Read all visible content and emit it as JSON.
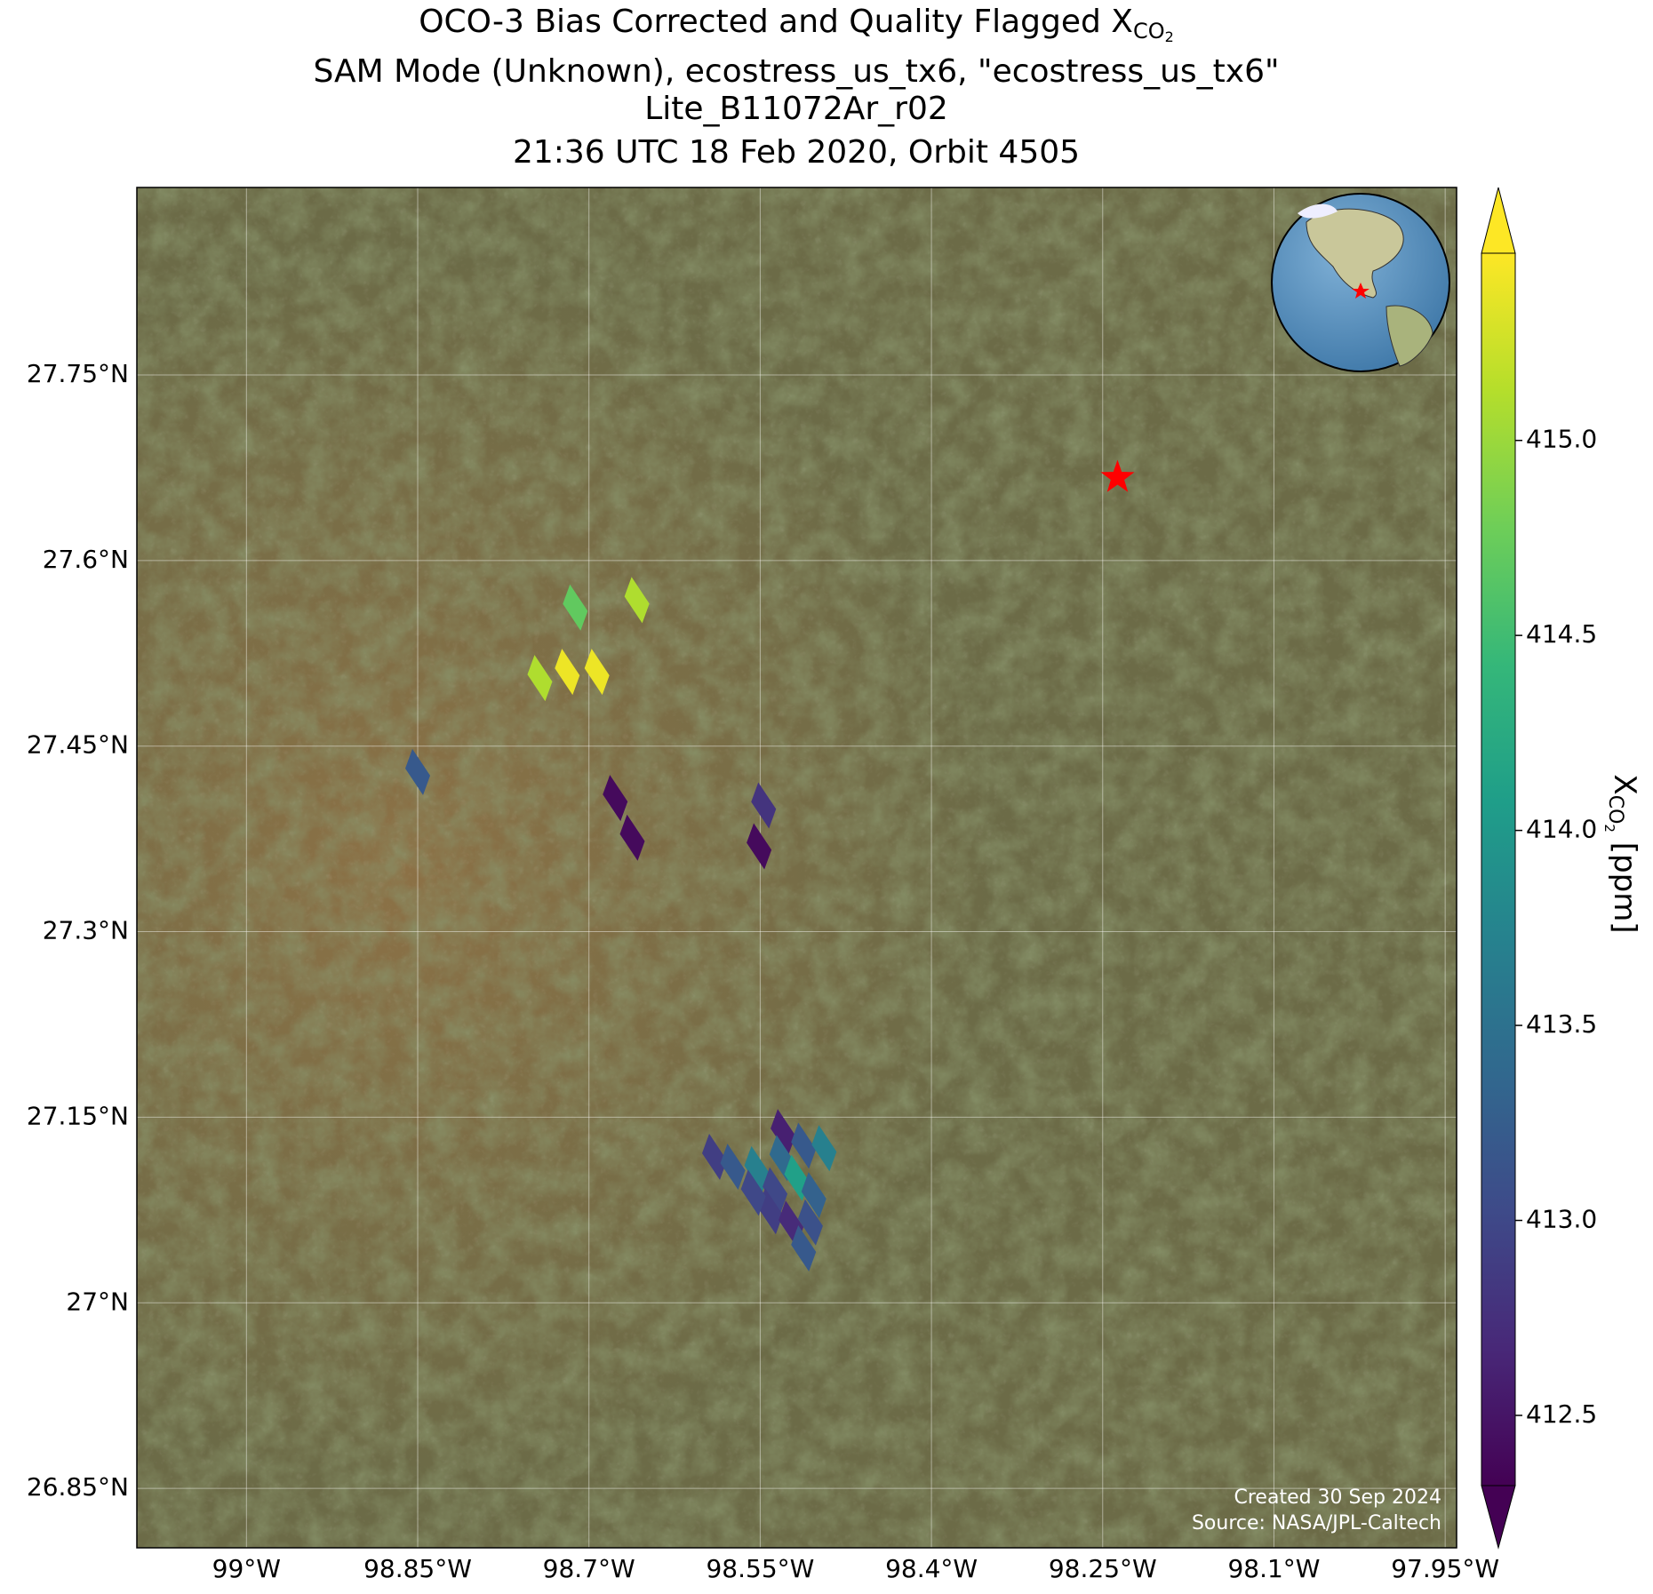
{
  "chart_data": {
    "type": "map",
    "title": {
      "text": "OCO-3 Bias Corrected and Quality Flagged X",
      "sub": "CO",
      "subsub": "2"
    },
    "subtitle_lines": [
      "SAM Mode (Unknown), ecostress_us_tx6, \"ecostress_us_tx6\"",
      "Lite_B11072Ar_r02",
      "21:36 UTC 18 Feb 2020, Orbit 4505"
    ],
    "xlim": [
      -99.096,
      -97.94
    ],
    "ylim": [
      26.802,
      27.9015
    ],
    "xticks": [
      {
        "value": -99,
        "label": "99°W"
      },
      {
        "value": -98.85,
        "label": "98.85°W"
      },
      {
        "value": -98.7,
        "label": "98.7°W"
      },
      {
        "value": -98.55,
        "label": "98.55°W"
      },
      {
        "value": -98.4,
        "label": "98.4°W"
      },
      {
        "value": -98.25,
        "label": "98.25°W"
      },
      {
        "value": -98.1,
        "label": "98.1°W"
      },
      {
        "value": -97.95,
        "label": "97.95°W"
      }
    ],
    "yticks": [
      {
        "value": 26.85,
        "label": "26.85°N"
      },
      {
        "value": 27,
        "label": "27°N"
      },
      {
        "value": 27.15,
        "label": "27.15°N"
      },
      {
        "value": 27.3,
        "label": "27.3°N"
      },
      {
        "value": 27.45,
        "label": "27.45°N"
      },
      {
        "value": 27.6,
        "label": "27.6°N"
      },
      {
        "value": 27.75,
        "label": "27.75°N"
      }
    ],
    "grid": true,
    "colormap": "viridis",
    "clim": [
      412.32,
      415.48
    ],
    "cticks": [
      412.5,
      {
        "value": 413,
        "label": "413.0"
      },
      413.5,
      {
        "value": 414,
        "label": "414.0"
      },
      414.5,
      {
        "value": 415,
        "label": "415.0"
      }
    ],
    "colorbar_label": {
      "text": "X",
      "sub": "CO",
      "subsub": "2",
      "unit": " [ppm]"
    },
    "soundings": {
      "lon": [
        -98.712,
        -98.658,
        -98.743,
        -98.719,
        -98.693,
        -98.85,
        -98.677,
        -98.662,
        -98.547,
        -98.551,
        -98.53,
        -98.59,
        -98.574,
        -98.553,
        -98.531,
        -98.512,
        -98.494,
        -98.537,
        -98.518,
        -98.503,
        -98.541,
        -98.523,
        -98.506,
        -98.512,
        -98.556
      ],
      "lat": [
        27.562,
        27.568,
        27.505,
        27.51,
        27.51,
        27.429,
        27.408,
        27.376,
        27.402,
        27.369,
        27.138,
        27.118,
        27.11,
        27.108,
        27.117,
        27.127,
        27.125,
        27.091,
        27.101,
        27.087,
        27.074,
        27.064,
        27.065,
        27.044,
        27.089
      ],
      "values": [
        414.7,
        415.1,
        415.1,
        415.4,
        415.4,
        413.2,
        412.4,
        412.4,
        412.8,
        412.4,
        412.6,
        412.9,
        413.2,
        413.7,
        413.4,
        413.2,
        413.7,
        413.0,
        414.1,
        413.3,
        412.9,
        412.7,
        413.1,
        413.2,
        413.0
      ]
    },
    "target": {
      "lon": -98.237,
      "lat": 27.667,
      "color": "#ff0000"
    },
    "footer": [
      "Created 30 Sep 2024",
      "Source: NASA/JPL-Caltech"
    ]
  }
}
